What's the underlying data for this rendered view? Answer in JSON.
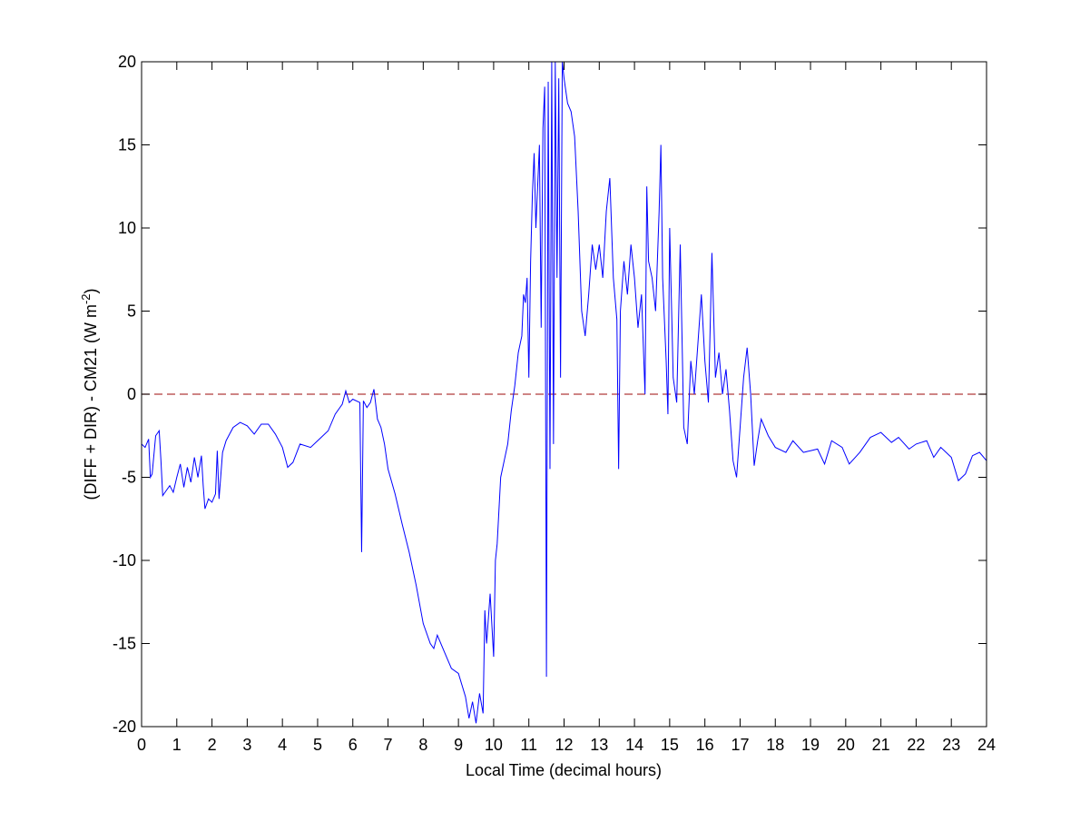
{
  "chart_data": {
    "type": "line",
    "x_label": "Local Time (decimal hours)",
    "y_label": {
      "text": "(DIFF + DIR) - CM21 (W m",
      "superscript": "-2",
      "suffix": ")"
    },
    "xlim": [
      0,
      24
    ],
    "ylim": [
      -20,
      20
    ],
    "xticks": [
      0,
      1,
      2,
      3,
      4,
      5,
      6,
      7,
      8,
      9,
      10,
      11,
      12,
      13,
      14,
      15,
      16,
      17,
      18,
      19,
      20,
      21,
      22,
      23,
      24
    ],
    "yticks": [
      -20,
      -15,
      -10,
      -5,
      0,
      5,
      10,
      15,
      20
    ],
    "reference_line": {
      "value": 0,
      "color": "#b03a3a",
      "style": "dashed"
    },
    "series": [
      {
        "color": "#0000ff",
        "x": [
          0,
          0.1,
          0.2,
          0.25,
          0.3,
          0.4,
          0.5,
          0.55,
          0.6,
          0.7,
          0.8,
          0.9,
          1.0,
          1.1,
          1.2,
          1.3,
          1.4,
          1.5,
          1.6,
          1.7,
          1.75,
          1.8,
          1.9,
          2.0,
          2.1,
          2.15,
          2.2,
          2.3,
          2.4,
          2.6,
          2.8,
          3.0,
          3.2,
          3.4,
          3.6,
          3.8,
          4.0,
          4.15,
          4.3,
          4.5,
          4.8,
          5.0,
          5.3,
          5.5,
          5.7,
          5.8,
          5.9,
          6.0,
          6.2,
          6.25,
          6.3,
          6.4,
          6.5,
          6.6,
          6.7,
          6.8,
          6.9,
          7.0,
          7.2,
          7.4,
          7.6,
          7.8,
          8.0,
          8.2,
          8.3,
          8.4,
          8.6,
          8.8,
          9.0,
          9.2,
          9.3,
          9.4,
          9.5,
          9.6,
          9.7,
          9.75,
          9.8,
          9.9,
          10.0,
          10.05,
          10.1,
          10.2,
          10.3,
          10.4,
          10.5,
          10.6,
          10.7,
          10.8,
          10.85,
          10.9,
          10.95,
          11.0,
          11.05,
          11.1,
          11.15,
          11.2,
          11.3,
          11.35,
          11.4,
          11.45,
          11.5,
          11.55,
          11.6,
          11.65,
          11.7,
          11.75,
          11.8,
          11.85,
          11.9,
          11.95,
          12.0,
          12.1,
          12.2,
          12.3,
          12.4,
          12.5,
          12.6,
          12.7,
          12.8,
          12.9,
          13.0,
          13.1,
          13.2,
          13.3,
          13.4,
          13.5,
          13.55,
          13.6,
          13.7,
          13.8,
          13.9,
          14.0,
          14.1,
          14.2,
          14.3,
          14.35,
          14.4,
          14.5,
          14.6,
          14.7,
          14.75,
          14.8,
          14.9,
          14.95,
          15.0,
          15.1,
          15.2,
          15.3,
          15.4,
          15.5,
          15.6,
          15.7,
          15.8,
          15.9,
          16.0,
          16.1,
          16.2,
          16.3,
          16.4,
          16.5,
          16.6,
          16.7,
          16.8,
          16.9,
          17.0,
          17.1,
          17.2,
          17.3,
          17.4,
          17.5,
          17.6,
          17.8,
          18.0,
          18.3,
          18.5,
          18.8,
          19.0,
          19.2,
          19.4,
          19.6,
          19.9,
          20.1,
          20.4,
          20.7,
          21.0,
          21.3,
          21.5,
          21.8,
          22.0,
          22.3,
          22.5,
          22.7,
          23.0,
          23.2,
          23.4,
          23.6,
          23.8,
          24.0
        ],
        "values": [
          -3,
          -3.2,
          -2.7,
          -5,
          -4.8,
          -2.5,
          -2.2,
          -4,
          -6.1,
          -5.8,
          -5.5,
          -5.9,
          -5.0,
          -4.2,
          -5.6,
          -4.4,
          -5.3,
          -3.8,
          -5.0,
          -3.7,
          -5.5,
          -6.9,
          -6.3,
          -6.5,
          -6.0,
          -3.4,
          -6.3,
          -3.5,
          -2.8,
          -2.0,
          -1.7,
          -1.9,
          -2.4,
          -1.8,
          -1.8,
          -2.4,
          -3.2,
          -4.4,
          -4.1,
          -3.0,
          -3.2,
          -2.8,
          -2.2,
          -1.2,
          -0.6,
          0.2,
          -0.5,
          -0.3,
          -0.5,
          -9.5,
          -0.4,
          -0.8,
          -0.5,
          0.3,
          -1.5,
          -2.0,
          -3.0,
          -4.5,
          -6.0,
          -7.8,
          -9.5,
          -11.5,
          -13.8,
          -15.0,
          -15.3,
          -14.5,
          -15.5,
          -16.5,
          -16.8,
          -18.2,
          -19.5,
          -18.5,
          -19.8,
          -18.0,
          -19.2,
          -13,
          -15,
          -12,
          -15.8,
          -10,
          -9,
          -5,
          -4.0,
          -3.0,
          -1.0,
          0.5,
          2.5,
          3.5,
          6,
          5.5,
          7,
          1,
          8,
          12,
          14.5,
          10,
          15,
          4,
          16,
          18.5,
          -17,
          18.8,
          -4.5,
          20,
          -3,
          20,
          7,
          19,
          1,
          20,
          19,
          17.5,
          17,
          15.5,
          11,
          5,
          3.5,
          6,
          9,
          7.5,
          9,
          7,
          11,
          13,
          7,
          4.5,
          -4.5,
          5,
          8,
          6,
          9,
          7,
          4,
          6,
          0,
          12.5,
          8,
          7,
          5,
          11,
          15,
          7,
          2,
          -1.2,
          10,
          1,
          -0.5,
          9,
          -2,
          -3,
          2,
          0,
          3,
          6,
          2,
          -0.5,
          8.5,
          1,
          2.5,
          0,
          1.5,
          -1,
          -4,
          -5,
          -2,
          1,
          2.8,
          0,
          -4.3,
          -2.8,
          -1.5,
          -2.5,
          -3.2,
          -3.5,
          -2.8,
          -3.5,
          -3.4,
          -3.3,
          -4.2,
          -2.8,
          -3.2,
          -4.2,
          -3.5,
          -2.6,
          -2.3,
          -2.9,
          -2.6,
          -3.3,
          -3.0,
          -2.8,
          -3.8,
          -3.2,
          -3.8,
          -5.2,
          -4.8,
          -3.7,
          -3.5,
          -4.0
        ]
      }
    ]
  }
}
